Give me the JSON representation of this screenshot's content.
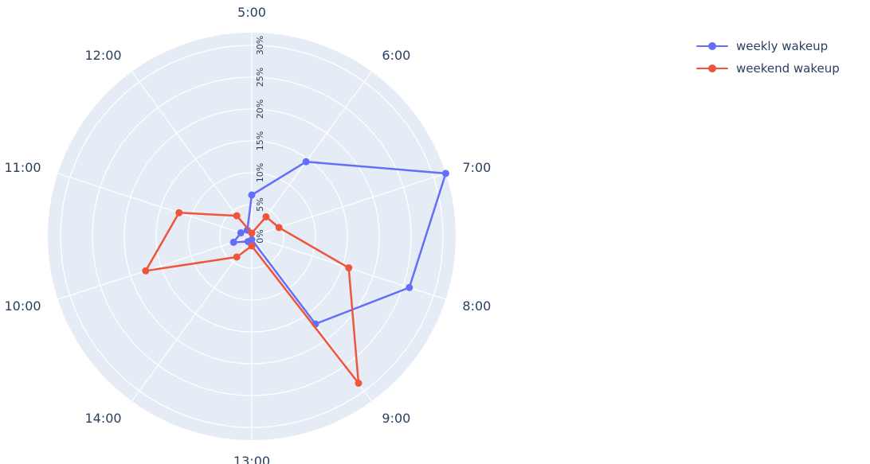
{
  "chart_data": {
    "type": "polar-line",
    "categories": [
      "5:00",
      "6:00",
      "7:00",
      "8:00",
      "9:00",
      "13:00",
      "14:00",
      "10:00",
      "11:00",
      "12:00"
    ],
    "radial_ticks": [
      "0%",
      "5%",
      "10%",
      "15%",
      "20%",
      "25%",
      "30%"
    ],
    "radial_range": [
      0,
      32
    ],
    "grid": true,
    "legend_position": "top-right",
    "series": [
      {
        "name": "weekly wakeup",
        "color": "#636efa",
        "values": [
          6.5,
          14.5,
          32.0,
          26.0,
          17.0,
          0.5,
          1.0,
          3.0,
          1.8,
          1.2
        ]
      },
      {
        "name": "weekend wakeup",
        "color": "#ef553b",
        "values": [
          0.5,
          3.8,
          4.5,
          16.0,
          28.5,
          1.5,
          4.0,
          17.5,
          12.0,
          4.0
        ]
      }
    ]
  }
}
